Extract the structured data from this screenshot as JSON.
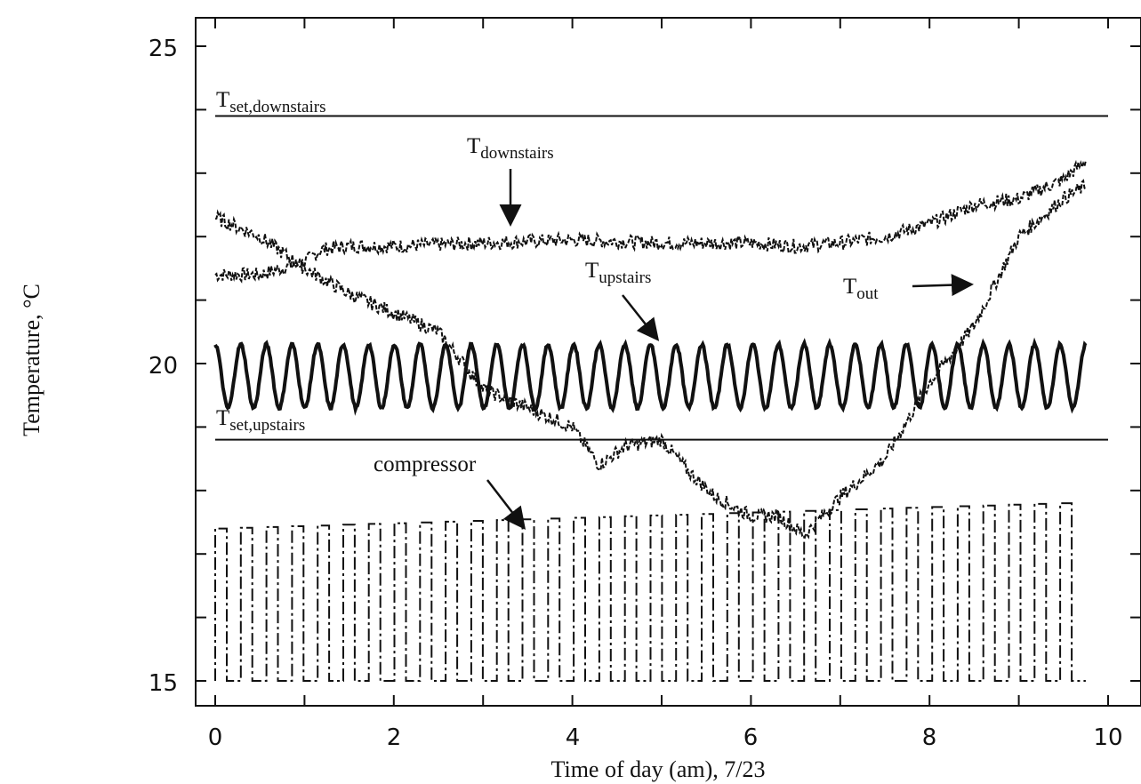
{
  "chart_data": {
    "type": "line",
    "title": "",
    "xlabel": "Time of day (am), 7/23",
    "ylabel": "Temperature, °C",
    "xlim": [
      0,
      10
    ],
    "ylim": [
      15,
      25
    ],
    "x_ticks": [
      "0",
      "2",
      "4",
      "6",
      "8",
      "10"
    ],
    "y_ticks": [
      "15",
      "20",
      "25"
    ],
    "annotations": {
      "t_set_downstairs": {
        "main": "T",
        "sub": "set,downstairs"
      },
      "t_downstairs": {
        "main": "T",
        "sub": "downstairs"
      },
      "t_upstairs": {
        "main": "T",
        "sub": "upstairs"
      },
      "t_out": {
        "main": "T",
        "sub": "out"
      },
      "t_set_upstairs": {
        "main": "T",
        "sub": "set,upstairs"
      },
      "compressor": "compressor"
    },
    "series": [
      {
        "key": "t_set_downstairs",
        "style": "solid-thin",
        "x": [
          0,
          10
        ],
        "y": [
          23.9,
          23.9
        ]
      },
      {
        "key": "t_set_upstairs",
        "style": "solid-thin",
        "x": [
          0,
          10
        ],
        "y": [
          18.8,
          18.8
        ]
      },
      {
        "key": "t_downstairs",
        "style": "dashed-noisy",
        "x": [
          0,
          0.5,
          1,
          1.2,
          1.5,
          2,
          3,
          4,
          5,
          6,
          6.5,
          7,
          7.5,
          8,
          8.5,
          9,
          9.5,
          9.75
        ],
        "y": [
          21.4,
          21.4,
          21.6,
          21.8,
          21.85,
          21.85,
          21.9,
          21.95,
          21.9,
          21.9,
          21.85,
          21.9,
          22.0,
          22.2,
          22.5,
          22.6,
          22.9,
          23.2
        ]
      },
      {
        "key": "t_out",
        "style": "dashed-noisy",
        "x": [
          0,
          0.5,
          1,
          1.5,
          2,
          2.5,
          3,
          3.5,
          4,
          4.3,
          4.6,
          5,
          5.3,
          5.6,
          6,
          6.3,
          6.6,
          7,
          7.5,
          8,
          8.5,
          8.75,
          9,
          9.5,
          9.75
        ],
        "y": [
          22.3,
          22.0,
          21.5,
          21.1,
          20.8,
          20.5,
          19.6,
          19.3,
          19.0,
          18.4,
          18.7,
          18.8,
          18.3,
          17.9,
          17.6,
          17.6,
          17.3,
          17.9,
          18.5,
          19.7,
          20.6,
          21.3,
          22.0,
          22.6,
          22.8
        ]
      },
      {
        "key": "t_upstairs",
        "style": "solid-oscillating",
        "cycles": 34,
        "low": 19.3,
        "high": 20.3,
        "x": [
          0,
          9.75
        ]
      },
      {
        "key": "compressor",
        "style": "square-wave",
        "cycles": 34,
        "off": 15.0,
        "on_start": 17.4,
        "on_end": 17.8,
        "x": [
          0,
          9.75
        ]
      }
    ]
  }
}
